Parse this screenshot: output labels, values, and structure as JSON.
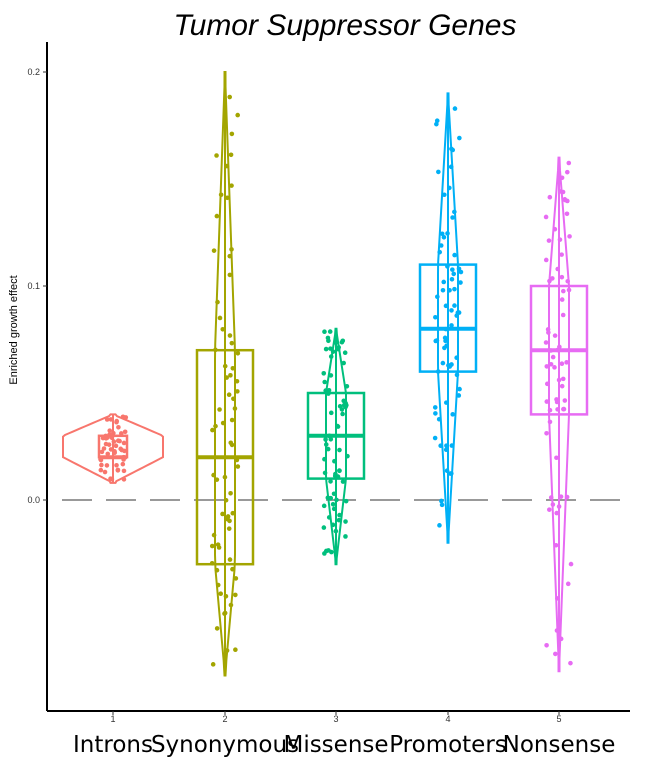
{
  "chart_data": {
    "type": "box",
    "title": "Tumor Suppressor Genes",
    "ylabel": "Enriched growth effect",
    "xlabel": "",
    "ylim": [
      -0.09,
      0.22
    ],
    "y_ticks": [
      "0.0",
      "0.1",
      "0.2"
    ],
    "x_ticks": [
      "1",
      "2",
      "3",
      "4",
      "5"
    ],
    "categories": [
      "Introns",
      "Synonymous",
      "Missense",
      "Promoters",
      "Nonsense"
    ],
    "reference_line": {
      "y": 0.0,
      "style": "dashed",
      "color": "#999999"
    },
    "grid": false,
    "legend": "none",
    "series": [
      {
        "category": "Introns",
        "color": "#F8766D",
        "q1": 0.02,
        "median": 0.02,
        "q3": 0.03,
        "min": 0.008,
        "max": 0.04
      },
      {
        "category": "Synonymous",
        "color": "#A3A500",
        "q1": -0.03,
        "median": 0.02,
        "q3": 0.07,
        "min": -0.082,
        "max": 0.2
      },
      {
        "category": "Missense",
        "color": "#00BF7D",
        "q1": 0.01,
        "median": 0.03,
        "q3": 0.05,
        "min": -0.03,
        "max": 0.08
      },
      {
        "category": "Promoters",
        "color": "#00B0F6",
        "q1": 0.06,
        "median": 0.08,
        "q3": 0.11,
        "min": -0.02,
        "max": 0.19
      },
      {
        "category": "Nonsense",
        "color": "#E76BF3",
        "q1": 0.04,
        "median": 0.07,
        "q3": 0.1,
        "min": -0.08,
        "max": 0.16
      }
    ]
  }
}
